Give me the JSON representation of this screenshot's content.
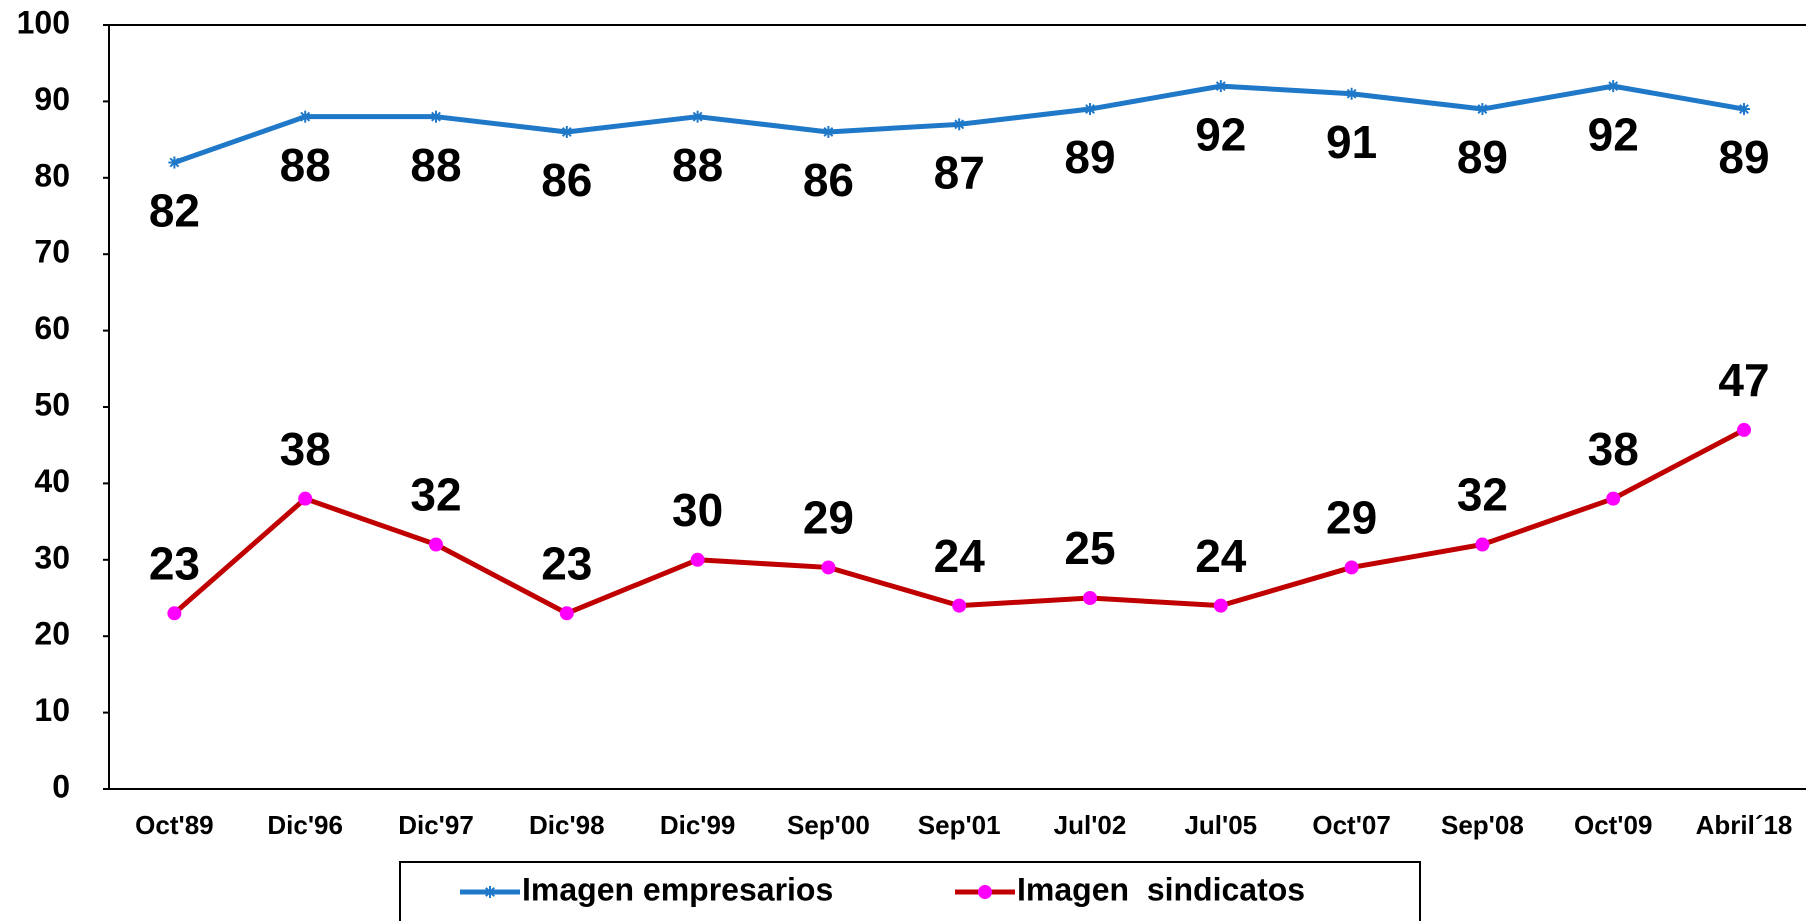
{
  "chart_data": {
    "type": "line",
    "categories": [
      "Oct'89",
      "Dic'96",
      "Dic'97",
      "Dic'98",
      "Dic'99",
      "Sep'00",
      "Sep'01",
      "Jul'02",
      "Jul'05",
      "Oct'07",
      "Sep'08",
      "Oct'09",
      "Abril´18"
    ],
    "series": [
      {
        "name": "Imagen empresarios",
        "color": "#1f78c8",
        "marker": "asterisk",
        "values": [
          82,
          88,
          88,
          86,
          88,
          86,
          87,
          89,
          92,
          91,
          89,
          92,
          89
        ]
      },
      {
        "name": "Imagen  sindicatos",
        "color": "#c00000",
        "marker_color": "#ff00ff",
        "marker": "circle",
        "values": [
          23,
          38,
          32,
          23,
          30,
          29,
          24,
          25,
          24,
          29,
          32,
          38,
          47
        ]
      }
    ],
    "ylim": [
      0,
      100
    ],
    "yticks": [
      0,
      10,
      20,
      30,
      40,
      50,
      60,
      70,
      80,
      90,
      100
    ],
    "grid": false,
    "legend": "bottom"
  }
}
